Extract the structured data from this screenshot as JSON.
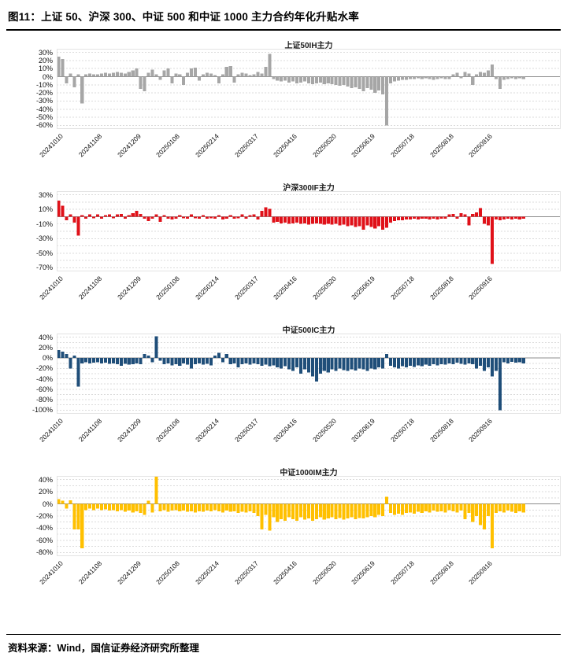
{
  "page": {
    "figure_label_title": "图11：上证 50、沪深 300、中证 500 和中证 1000 主力合约年化升贴水率",
    "source_note": "资料来源：Wind，国信证券经济研究所整理"
  },
  "chart_data": [
    {
      "type": "bar",
      "title": "上证50IH主力",
      "unit": "%",
      "color": "#A6A6A6",
      "ylim": [
        -60,
        30
      ],
      "grid_step": 10,
      "grid": true,
      "yticks": [
        30,
        20,
        10,
        0,
        -10,
        -20,
        -30,
        -40,
        -50,
        -60
      ],
      "x_tick_labels": [
        "20241010",
        "20241108",
        "20241209",
        "20250108",
        "20250214",
        "20250317",
        "20250416",
        "20250520",
        "20250619",
        "20250718",
        "20250818",
        "20250916"
      ],
      "x_ticks_every": 10,
      "values": [
        25,
        22,
        -8,
        4,
        -13,
        3,
        -33,
        3,
        4,
        3,
        3,
        4,
        5,
        4,
        5,
        6,
        5,
        4,
        6,
        8,
        10,
        -15,
        -18,
        5,
        9,
        3,
        -4,
        8,
        10,
        -8,
        4,
        3,
        -10,
        5,
        10,
        11,
        -5,
        3,
        5,
        4,
        2,
        -8,
        3,
        12,
        13,
        -7,
        3,
        5,
        4,
        2,
        3,
        6,
        4,
        12,
        28,
        -3,
        -5,
        -6,
        -5,
        -7,
        -6,
        -8,
        -7,
        -6,
        -8,
        -9,
        -8,
        -7,
        -9,
        -8,
        -9,
        -10,
        -11,
        -10,
        -12,
        -14,
        -13,
        -15,
        -18,
        -14,
        -16,
        -20,
        -17,
        -22,
        -60,
        -8,
        -6,
        -5,
        -4,
        -4,
        -3,
        -3,
        -2,
        -3,
        -2,
        -3,
        -4,
        -3,
        -2,
        -3,
        -3,
        3,
        5,
        -2,
        6,
        4,
        -10,
        3,
        6,
        5,
        8,
        15,
        -3,
        -15,
        -4,
        -3,
        -2,
        -3,
        -2,
        -3
      ]
    },
    {
      "type": "bar",
      "title": "沪深300IF主力",
      "unit": "%",
      "color": "#E01119",
      "ylim": [
        -70,
        30
      ],
      "grid_step": 10,
      "grid": true,
      "yticks": [
        30,
        10,
        -10,
        -30,
        -50,
        -70
      ],
      "x_tick_labels": [
        "20241010",
        "20241108",
        "20241209",
        "20250108",
        "20250214",
        "20250317",
        "20250416",
        "20250520",
        "20250619",
        "20250718",
        "20250818",
        "20250916"
      ],
      "x_ticks_every": 10,
      "values": [
        22,
        15,
        -5,
        3,
        -8,
        -26,
        2,
        -3,
        3,
        -2,
        3,
        -3,
        2,
        3,
        -2,
        3,
        4,
        -3,
        2,
        5,
        8,
        4,
        -3,
        -6,
        -3,
        3,
        -7,
        2,
        -3,
        -4,
        -3,
        2,
        -2,
        -3,
        3,
        -2,
        -3,
        2,
        -3,
        -2,
        -3,
        2,
        -4,
        -3,
        2,
        -3,
        -2,
        3,
        -3,
        2,
        3,
        -4,
        8,
        13,
        11,
        -8,
        -7,
        -9,
        -8,
        -10,
        -9,
        -8,
        -10,
        -9,
        -11,
        -10,
        -9,
        -10,
        -11,
        -10,
        -11,
        -10,
        -12,
        -11,
        -13,
        -12,
        -14,
        -13,
        -18,
        -12,
        -14,
        -16,
        -13,
        -18,
        -15,
        -8,
        -6,
        -5,
        -5,
        -4,
        -4,
        -3,
        -4,
        -3,
        -3,
        -4,
        -3,
        -4,
        -3,
        -3,
        3,
        4,
        -3,
        5,
        3,
        -12,
        4,
        6,
        12,
        -10,
        -12,
        -65,
        -4,
        -5,
        -4,
        -3,
        -4,
        -3,
        -4,
        -3
      ]
    },
    {
      "type": "bar",
      "title": "中证500IC主力",
      "unit": "%",
      "color": "#1F4E79",
      "ylim": [
        -100,
        40
      ],
      "grid_step": 10,
      "grid": true,
      "yticks": [
        40,
        20,
        0,
        -20,
        -40,
        -60,
        -80,
        -100
      ],
      "x_tick_labels": [
        "20241010",
        "20241108",
        "20241209",
        "20250108",
        "20250214",
        "20250317",
        "20250416",
        "20250520",
        "20250619",
        "20250718",
        "20250818",
        "20250916"
      ],
      "x_ticks_every": 10,
      "values": [
        15,
        12,
        8,
        -20,
        5,
        -55,
        -10,
        -8,
        -10,
        -9,
        -8,
        -10,
        -9,
        -11,
        -10,
        -12,
        -15,
        -11,
        -13,
        -12,
        -10,
        -12,
        8,
        5,
        -8,
        42,
        -5,
        -12,
        -10,
        -14,
        -12,
        -15,
        -10,
        -13,
        -20,
        -12,
        -10,
        -13,
        -11,
        -14,
        5,
        10,
        -8,
        8,
        -12,
        -10,
        -18,
        -12,
        -10,
        -13,
        -10,
        -12,
        -15,
        -13,
        -16,
        -14,
        -18,
        -20,
        -16,
        -22,
        -25,
        -18,
        -30,
        -22,
        -28,
        -35,
        -45,
        -30,
        -25,
        -28,
        -22,
        -25,
        -20,
        -23,
        -25,
        -22,
        -24,
        -20,
        -22,
        -25,
        -20,
        -22,
        -18,
        -20,
        8,
        -15,
        -18,
        -20,
        -16,
        -18,
        -15,
        -17,
        -14,
        -16,
        -13,
        -15,
        -12,
        -14,
        -12,
        -13,
        -10,
        -12,
        -9,
        -11,
        -13,
        -10,
        -12,
        -20,
        -15,
        -25,
        -18,
        -35,
        -25,
        -100,
        -8,
        -10,
        -7,
        -9,
        -8,
        -10
      ]
    },
    {
      "type": "bar",
      "title": "中证1000IM主力",
      "unit": "%",
      "color": "#FFC000",
      "ylim": [
        -80,
        40
      ],
      "grid_step": 10,
      "grid": true,
      "yticks": [
        40,
        20,
        0,
        -20,
        -40,
        -60,
        -80
      ],
      "x_tick_labels": [
        "20241010",
        "20241108",
        "20241209",
        "20250108",
        "20250214",
        "20250317",
        "20250416",
        "20250520",
        "20250619",
        "20250718",
        "20250818",
        "20250916"
      ],
      "x_ticks_every": 10,
      "values": [
        8,
        5,
        -8,
        6,
        -42,
        -42,
        -73,
        -10,
        -8,
        -10,
        -8,
        -10,
        -9,
        -11,
        -10,
        -12,
        -10,
        -13,
        -11,
        -14,
        -12,
        -15,
        -18,
        5,
        -14,
        45,
        -12,
        -10,
        -13,
        -11,
        -10,
        -12,
        -11,
        -13,
        -12,
        -14,
        -12,
        -13,
        -11,
        -12,
        -10,
        -12,
        -14,
        -11,
        -13,
        -12,
        -15,
        -13,
        -14,
        -12,
        -15,
        -20,
        -42,
        -18,
        -44,
        -22,
        -30,
        -25,
        -28,
        -22,
        -25,
        -28,
        -22,
        -26,
        -24,
        -28,
        -25,
        -22,
        -26,
        -24,
        -22,
        -25,
        -23,
        -26,
        -24,
        -22,
        -25,
        -23,
        -24,
        -22,
        -20,
        -22,
        -18,
        -20,
        12,
        -15,
        -18,
        -16,
        -18,
        -15,
        -14,
        -16,
        -13,
        -15,
        -12,
        -14,
        -11,
        -13,
        -12,
        -14,
        -10,
        -12,
        -14,
        -11,
        -25,
        -15,
        -30,
        -20,
        -35,
        -42,
        -20,
        -73,
        -15,
        -12,
        -14,
        -11,
        -13,
        -15,
        -12,
        -14
      ]
    }
  ]
}
